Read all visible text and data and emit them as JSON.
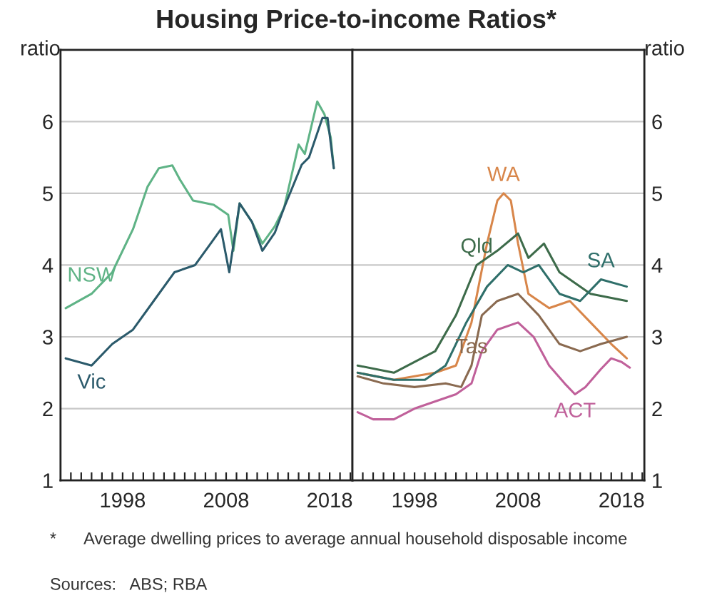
{
  "chart_data": [
    {
      "type": "line",
      "title": "Housing Price-to-income Ratios*",
      "ylabel": "ratio",
      "xlim": [
        1992,
        2020.2
      ],
      "ylim": [
        1,
        7
      ],
      "yticks": [
        1,
        2,
        3,
        4,
        5,
        6
      ],
      "grid": "y",
      "xticks": [
        {
          "value": 1993,
          "label": null
        },
        {
          "value": 1994,
          "label": null
        },
        {
          "value": 1995,
          "label": null
        },
        {
          "value": 1996,
          "label": null
        },
        {
          "value": 1997,
          "label": null
        },
        1998,
        {
          "value": 1999,
          "label": null
        },
        {
          "value": 2000,
          "label": null
        },
        {
          "value": 2001,
          "label": null
        },
        {
          "value": 2002,
          "label": null
        },
        {
          "value": 2003,
          "label": null
        },
        {
          "value": 2004,
          "label": null
        },
        {
          "value": 2005,
          "label": null
        },
        {
          "value": 2006,
          "label": null
        },
        {
          "value": 2007,
          "label": null
        },
        2008,
        {
          "value": 2009,
          "label": null
        },
        {
          "value": 2010,
          "label": null
        },
        {
          "value": 2011,
          "label": null
        },
        {
          "value": 2012,
          "label": null
        },
        {
          "value": 2013,
          "label": null
        },
        {
          "value": 2014,
          "label": null
        },
        {
          "value": 2015,
          "label": null
        },
        {
          "value": 2016,
          "label": null
        },
        {
          "value": 2017,
          "label": null
        },
        2018,
        {
          "value": 2019,
          "label": null
        },
        {
          "value": 2020,
          "label": null
        }
      ],
      "series": [
        {
          "name": "NSW",
          "color": "#5fb386",
          "x": [
            1992.5,
            1995,
            1997,
            1999,
            2000.4,
            2001.5,
            2002.8,
            2003.5,
            2004.8,
            2006.8,
            2008.2,
            2008.7,
            2009.3,
            2010.5,
            2011.5,
            2012.7,
            2013.6,
            2015,
            2015.6,
            2016.8,
            2017.5,
            2018.1,
            2018.4
          ],
          "values": [
            3.4,
            3.6,
            3.9,
            4.5,
            5.09,
            5.35,
            5.39,
            5.2,
            4.9,
            4.84,
            4.7,
            4.2,
            4.86,
            4.6,
            4.3,
            4.54,
            4.8,
            5.68,
            5.55,
            6.28,
            6.1,
            5.78,
            5.35
          ]
        },
        {
          "name": "Vic",
          "color": "#2b5a6b",
          "x": [
            1992.5,
            1995,
            1997,
            1999,
            2001,
            2003,
            2005,
            2006.5,
            2007.5,
            2008.3,
            2009.3,
            2010.5,
            2011.5,
            2012.7,
            2013.6,
            2015.3,
            2016,
            2017.3,
            2017.8,
            2018.1,
            2018.4
          ],
          "values": [
            2.7,
            2.6,
            2.9,
            3.1,
            3.5,
            3.9,
            4.0,
            4.3,
            4.5,
            3.9,
            4.86,
            4.6,
            4.2,
            4.45,
            4.8,
            5.4,
            5.5,
            6.05,
            6.05,
            5.7,
            5.35
          ]
        }
      ],
      "annotations": [
        "*      Average dwelling prices to average annual household disposable income",
        "Sources:   ABS; RBA"
      ]
    },
    {
      "type": "line",
      "ylabel": "ratio",
      "xlim": [
        1992,
        2020.2
      ],
      "ylim": [
        1,
        7
      ],
      "yticks": [
        1,
        2,
        3,
        4,
        5,
        6
      ],
      "grid": "y",
      "xticks": [
        {
          "value": 1993,
          "label": null
        },
        {
          "value": 1994,
          "label": null
        },
        {
          "value": 1995,
          "label": null
        },
        {
          "value": 1996,
          "label": null
        },
        {
          "value": 1997,
          "label": null
        },
        1998,
        {
          "value": 1999,
          "label": null
        },
        {
          "value": 2000,
          "label": null
        },
        {
          "value": 2001,
          "label": null
        },
        {
          "value": 2002,
          "label": null
        },
        {
          "value": 2003,
          "label": null
        },
        {
          "value": 2004,
          "label": null
        },
        {
          "value": 2005,
          "label": null
        },
        {
          "value": 2006,
          "label": null
        },
        {
          "value": 2007,
          "label": null
        },
        2008,
        {
          "value": 2009,
          "label": null
        },
        {
          "value": 2010,
          "label": null
        },
        {
          "value": 2011,
          "label": null
        },
        {
          "value": 2012,
          "label": null
        },
        {
          "value": 2013,
          "label": null
        },
        {
          "value": 2014,
          "label": null
        },
        {
          "value": 2015,
          "label": null
        },
        {
          "value": 2016,
          "label": null
        },
        {
          "value": 2017,
          "label": null
        },
        2018,
        {
          "value": 2019,
          "label": null
        },
        {
          "value": 2020,
          "label": null
        }
      ],
      "series": [
        {
          "name": "WA",
          "color": "#d8864a",
          "x": [
            1992.5,
            1996,
            2000,
            2002,
            2003.5,
            2005,
            2006,
            2006.6,
            2007.3,
            2008,
            2009,
            2011,
            2013,
            2015,
            2017,
            2018.5
          ],
          "values": [
            2.5,
            2.4,
            2.5,
            2.6,
            3.2,
            4.3,
            4.9,
            5.0,
            4.9,
            4.3,
            3.6,
            3.4,
            3.5,
            3.2,
            2.9,
            2.7
          ]
        },
        {
          "name": "Qld",
          "color": "#3d6b4a",
          "x": [
            1992.5,
            1996,
            2000,
            2002,
            2004,
            2006,
            2008,
            2009,
            2010.5,
            2012,
            2015,
            2018.5
          ],
          "values": [
            2.6,
            2.5,
            2.8,
            3.3,
            4.0,
            4.2,
            4.44,
            4.1,
            4.3,
            3.9,
            3.6,
            3.5
          ]
        },
        {
          "name": "SA",
          "color": "#2f6f6a",
          "x": [
            1992.5,
            1996,
            1999,
            2001,
            2003,
            2005,
            2007,
            2008.5,
            2010,
            2012,
            2014,
            2016,
            2018.5
          ],
          "values": [
            2.5,
            2.4,
            2.4,
            2.6,
            3.2,
            3.7,
            4.0,
            3.9,
            4.0,
            3.6,
            3.5,
            3.8,
            3.7
          ]
        },
        {
          "name": "Tas",
          "color": "#8a6a50",
          "x": [
            1992.5,
            1995,
            1998,
            2001,
            2002.5,
            2003.5,
            2004.5,
            2006,
            2008,
            2010,
            2012,
            2014,
            2016,
            2018.5
          ],
          "values": [
            2.45,
            2.35,
            2.3,
            2.35,
            2.3,
            2.6,
            3.3,
            3.5,
            3.6,
            3.3,
            2.9,
            2.8,
            2.9,
            3.0
          ]
        },
        {
          "name": "ACT",
          "color": "#c0609a",
          "x": [
            1992.5,
            1994,
            1996,
            1998,
            2000,
            2002,
            2003.5,
            2004.5,
            2006,
            2008,
            2009.5,
            2011,
            2012.5,
            2013.5,
            2014.5,
            2016,
            2017,
            2018,
            2018.8
          ],
          "values": [
            1.95,
            1.85,
            1.85,
            2.0,
            2.1,
            2.2,
            2.35,
            2.8,
            3.1,
            3.2,
            3.0,
            2.6,
            2.35,
            2.2,
            2.3,
            2.55,
            2.7,
            2.65,
            2.57
          ]
        }
      ]
    }
  ]
}
